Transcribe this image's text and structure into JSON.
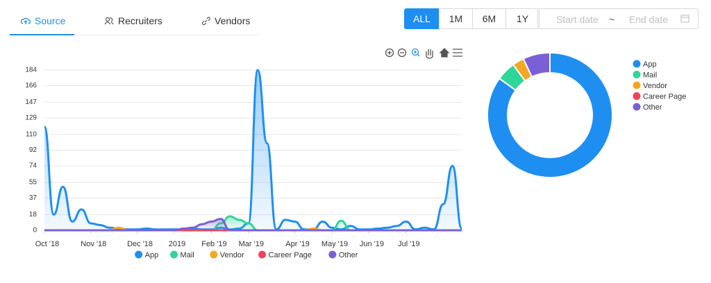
{
  "tabs": [
    "Source",
    "Recruiters",
    "Vendors"
  ],
  "range_buttons": [
    "ALL",
    "1M",
    "6M",
    "1Y"
  ],
  "date_range": {
    "start": "Start date",
    "separator": "~",
    "end": "End date"
  },
  "chart_data": [
    {
      "type": "line",
      "categories": [
        "Oct '18",
        null,
        null,
        null,
        null,
        "Nov '18",
        null,
        null,
        null,
        null,
        "Dec '18",
        null,
        null,
        null,
        "2019",
        null,
        null,
        null,
        "Feb '19",
        null,
        null,
        null,
        "Mar '19",
        null,
        null,
        null,
        null,
        "Apr '19",
        null,
        null,
        null,
        "May '19",
        null,
        null,
        null,
        "Jun '19",
        null,
        null,
        null,
        "Jul '19",
        null,
        null,
        null,
        null,
        null,
        null
      ],
      "series": [
        {
          "name": "App",
          "color": "#1e8ff0",
          "values": [
            119,
            18,
            50,
            10,
            24,
            8,
            6,
            3,
            2,
            1,
            1,
            2,
            1,
            1,
            1,
            1,
            2,
            1,
            1,
            3,
            1,
            2,
            8,
            184,
            100,
            1,
            12,
            10,
            1,
            1,
            10,
            3,
            1,
            5,
            1,
            1,
            2,
            3,
            5,
            10,
            1,
            3,
            1,
            30,
            74,
            2
          ]
        },
        {
          "name": "Mail",
          "color": "#2ed69a",
          "values": [
            0,
            0,
            0,
            0,
            0,
            0,
            0,
            0,
            0,
            0,
            0,
            0,
            0,
            0,
            0,
            0,
            0,
            0,
            0,
            8,
            16,
            12,
            8,
            0,
            0,
            0,
            0,
            0,
            0,
            0,
            0,
            0,
            11,
            0,
            0,
            0,
            0,
            0,
            0,
            0,
            0,
            0,
            0,
            0,
            0,
            0
          ]
        },
        {
          "name": "Vendor",
          "color": "#f5a623",
          "values": [
            0,
            0,
            0,
            0,
            0,
            0,
            0,
            0,
            3,
            0,
            0,
            0,
            0,
            0,
            0,
            0,
            0,
            0,
            0,
            0,
            0,
            0,
            0,
            0,
            0,
            0,
            0,
            0,
            0,
            2,
            0,
            0,
            0,
            0,
            0,
            0,
            0,
            0,
            0,
            0,
            0,
            0,
            0,
            0,
            0,
            0
          ]
        },
        {
          "name": "Career Page",
          "color": "#f0435b",
          "values": [
            0,
            0,
            0,
            0,
            0,
            0,
            0,
            0,
            0,
            0,
            0,
            0,
            0,
            0,
            0,
            0,
            0,
            0,
            0,
            0,
            0,
            0,
            0,
            0,
            0,
            0,
            0,
            0,
            0,
            0,
            0,
            0,
            0,
            0,
            0,
            0,
            0,
            0,
            0,
            0,
            0,
            0,
            0,
            0,
            0,
            0
          ]
        },
        {
          "name": "Other",
          "color": "#7b5fd6",
          "values": [
            0,
            0,
            0,
            0,
            0,
            0,
            0,
            0,
            0,
            0,
            0,
            0,
            0,
            0,
            0,
            2,
            3,
            7,
            10,
            13,
            0,
            0,
            0,
            0,
            0,
            0,
            0,
            0,
            0,
            0,
            0,
            0,
            0,
            0,
            0,
            0,
            0,
            0,
            0,
            0,
            0,
            0,
            0,
            0,
            0,
            0
          ]
        }
      ],
      "ylim": [
        0,
        184
      ],
      "yticks": [
        0,
        18,
        37,
        55,
        74,
        92,
        110,
        129,
        147,
        166,
        184
      ],
      "grid": true,
      "legend": "bottom"
    },
    {
      "type": "pie",
      "categories": [
        "App",
        "Mail",
        "Vendor",
        "Career Page",
        "Other"
      ],
      "values": [
        85,
        5,
        3,
        0,
        7
      ],
      "colors": [
        "#1e8ff0",
        "#2ed69a",
        "#f5a623",
        "#f0435b",
        "#7b5fd6"
      ],
      "legend": "right"
    }
  ]
}
